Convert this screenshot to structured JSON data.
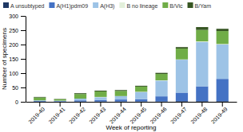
{
  "chart_data": {
    "type": "bar",
    "stacked": true,
    "categories": [
      "2019-40",
      "2019-41",
      "2019-42",
      "2019-43",
      "2019-44",
      "2019-45",
      "2019-46",
      "2019-47",
      "2019-48",
      "2019-49"
    ],
    "series": [
      {
        "name": "A unsubtyped",
        "color": "#1f3864",
        "values": [
          1,
          0,
          1,
          1,
          1,
          1,
          1,
          2,
          2,
          2
        ]
      },
      {
        "name": "A(H1)pdm09",
        "color": "#4472c4",
        "values": [
          2,
          2,
          4,
          5,
          7,
          8,
          18,
          30,
          52,
          78
        ]
      },
      {
        "name": "A(H3)",
        "color": "#9dc3e6",
        "values": [
          2,
          2,
          6,
          10,
          12,
          25,
          55,
          115,
          155,
          120
        ]
      },
      {
        "name": "B no lineage",
        "color": "#e2efda",
        "values": [
          0,
          0,
          0,
          1,
          0,
          1,
          1,
          1,
          2,
          2
        ]
      },
      {
        "name": "B/Vic",
        "color": "#70ad47",
        "values": [
          10,
          5,
          16,
          19,
          18,
          18,
          22,
          38,
          40,
          45
        ]
      },
      {
        "name": "B/Yam",
        "color": "#375623",
        "values": [
          2,
          1,
          3,
          3,
          3,
          3,
          4,
          5,
          10,
          8
        ]
      }
    ],
    "xlabel": "Week of reporting",
    "ylabel": "Number of specimens",
    "ylim": [
      0,
      300
    ],
    "yticks": [
      0,
      50,
      100,
      150,
      200,
      250,
      300
    ],
    "grid": false,
    "legend": "top"
  }
}
